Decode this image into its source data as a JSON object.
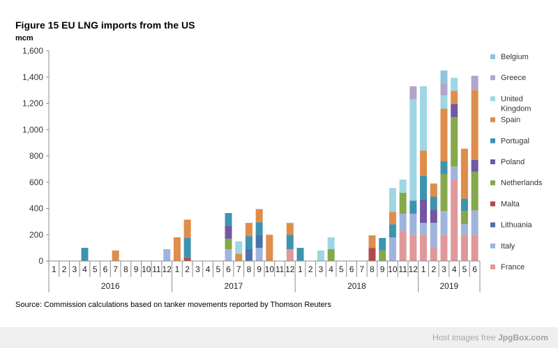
{
  "title": "Figure 15 EU LNG imports from the US",
  "source": "Source: Commission calculations based on tanker movements reported by Thomson Reuters",
  "watermark": {
    "prefix": "Host images free",
    "brand": "JpgBox.com"
  },
  "chart_data": {
    "type": "bar",
    "stacked": true,
    "ylabel": "mcm",
    "ylim": [
      0,
      1600
    ],
    "yticks": [
      0,
      200,
      400,
      600,
      800,
      1000,
      1200,
      1400,
      1600
    ],
    "ytick_labels": [
      "0",
      "200",
      "400",
      "600",
      "800",
      "1,000",
      "1,200",
      "1,400",
      "1,600"
    ],
    "grid": false,
    "legend_position": "right",
    "categories": [
      "1",
      "2",
      "3",
      "4",
      "5",
      "6",
      "7",
      "8",
      "9",
      "10",
      "11",
      "12",
      "1",
      "2",
      "3",
      "4",
      "5",
      "6",
      "7",
      "8",
      "9",
      "10",
      "11",
      "12",
      "1",
      "2",
      "3",
      "4",
      "5",
      "6",
      "7",
      "8",
      "9",
      "10",
      "11",
      "12",
      "1",
      "2",
      "3",
      "4",
      "5",
      "6"
    ],
    "year_groups": [
      {
        "label": "2016",
        "count": 12
      },
      {
        "label": "2017",
        "count": 12
      },
      {
        "label": "2018",
        "count": 12
      },
      {
        "label": "2019",
        "count": 6
      }
    ],
    "series": [
      {
        "name": "France",
        "color": "#e0989a",
        "values": [
          0,
          0,
          0,
          0,
          0,
          0,
          0,
          0,
          0,
          0,
          0,
          0,
          0,
          0,
          0,
          0,
          0,
          0,
          0,
          0,
          0,
          0,
          0,
          90,
          0,
          0,
          0,
          0,
          0,
          0,
          0,
          0,
          0,
          0,
          230,
          200,
          200,
          100,
          200,
          620,
          200,
          200
        ]
      },
      {
        "name": "Italy",
        "color": "#9fb4dc",
        "values": [
          0,
          0,
          0,
          0,
          0,
          0,
          0,
          0,
          0,
          0,
          0,
          90,
          0,
          0,
          0,
          0,
          0,
          90,
          0,
          0,
          100,
          0,
          0,
          0,
          0,
          0,
          0,
          0,
          0,
          0,
          0,
          0,
          0,
          180,
          130,
          160,
          90,
          190,
          180,
          100,
          80,
          185
        ]
      },
      {
        "name": "Lithuania",
        "color": "#4a73a8",
        "values": [
          0,
          0,
          0,
          0,
          0,
          0,
          0,
          0,
          0,
          0,
          0,
          0,
          0,
          0,
          0,
          0,
          0,
          0,
          0,
          90,
          100,
          0,
          0,
          0,
          0,
          0,
          0,
          0,
          0,
          0,
          0,
          0,
          0,
          0,
          0,
          0,
          0,
          0,
          0,
          0,
          0,
          0
        ]
      },
      {
        "name": "Malta",
        "color": "#b24a4a",
        "values": [
          0,
          0,
          0,
          0,
          0,
          0,
          0,
          0,
          0,
          0,
          0,
          0,
          0,
          25,
          0,
          0,
          0,
          0,
          0,
          0,
          0,
          0,
          0,
          0,
          0,
          0,
          0,
          0,
          0,
          0,
          0,
          100,
          0,
          0,
          0,
          0,
          0,
          0,
          0,
          0,
          0,
          0
        ]
      },
      {
        "name": "Netherlands",
        "color": "#86a84a",
        "values": [
          0,
          0,
          0,
          0,
          0,
          0,
          0,
          0,
          0,
          0,
          0,
          0,
          0,
          0,
          0,
          0,
          0,
          80,
          0,
          0,
          0,
          0,
          0,
          0,
          0,
          0,
          0,
          90,
          0,
          0,
          0,
          0,
          80,
          0,
          160,
          0,
          0,
          0,
          280,
          375,
          100,
          295
        ]
      },
      {
        "name": "Poland",
        "color": "#7158a0",
        "values": [
          0,
          0,
          0,
          0,
          0,
          0,
          0,
          0,
          0,
          0,
          0,
          0,
          0,
          0,
          0,
          0,
          0,
          95,
          0,
          0,
          0,
          0,
          0,
          0,
          0,
          0,
          0,
          0,
          0,
          0,
          0,
          0,
          0,
          0,
          0,
          0,
          180,
          100,
          0,
          100,
          0,
          90
        ]
      },
      {
        "name": "Portugal",
        "color": "#3e94ae",
        "values": [
          0,
          0,
          0,
          100,
          0,
          0,
          0,
          0,
          0,
          0,
          0,
          0,
          0,
          150,
          0,
          0,
          0,
          100,
          0,
          100,
          95,
          0,
          0,
          110,
          100,
          0,
          0,
          0,
          0,
          0,
          0,
          0,
          95,
          100,
          0,
          100,
          180,
          100,
          100,
          0,
          95,
          0
        ]
      },
      {
        "name": "Spain",
        "color": "#df8d4b",
        "values": [
          0,
          0,
          0,
          0,
          0,
          0,
          80,
          0,
          0,
          0,
          0,
          0,
          180,
          140,
          0,
          0,
          0,
          0,
          55,
          100,
          100,
          200,
          0,
          90,
          0,
          0,
          0,
          0,
          0,
          0,
          0,
          95,
          0,
          95,
          0,
          0,
          190,
          100,
          400,
          100,
          380,
          530
        ]
      },
      {
        "name": "United Kingdom",
        "color": "#9ed6e4",
        "values": [
          0,
          0,
          0,
          0,
          0,
          0,
          0,
          0,
          0,
          0,
          0,
          0,
          0,
          0,
          0,
          0,
          0,
          0,
          95,
          0,
          0,
          0,
          0,
          0,
          0,
          0,
          80,
          90,
          0,
          0,
          0,
          0,
          0,
          180,
          100,
          770,
          490,
          0,
          100,
          100,
          0,
          0
        ]
      },
      {
        "name": "Greece",
        "color": "#b4a4cc",
        "values": [
          0,
          0,
          0,
          0,
          0,
          0,
          0,
          0,
          0,
          0,
          0,
          0,
          0,
          0,
          0,
          0,
          0,
          0,
          0,
          0,
          0,
          0,
          0,
          0,
          0,
          0,
          0,
          0,
          0,
          0,
          0,
          0,
          0,
          0,
          0,
          100,
          0,
          0,
          95,
          0,
          0,
          110
        ]
      },
      {
        "name": "Belgium",
        "color": "#8fc4dc",
        "values": [
          0,
          0,
          0,
          0,
          0,
          0,
          0,
          0,
          0,
          0,
          0,
          0,
          0,
          0,
          0,
          0,
          0,
          0,
          0,
          0,
          0,
          0,
          0,
          0,
          0,
          0,
          0,
          0,
          0,
          0,
          0,
          0,
          0,
          0,
          0,
          0,
          0,
          0,
          95,
          0,
          0,
          0
        ]
      }
    ]
  }
}
